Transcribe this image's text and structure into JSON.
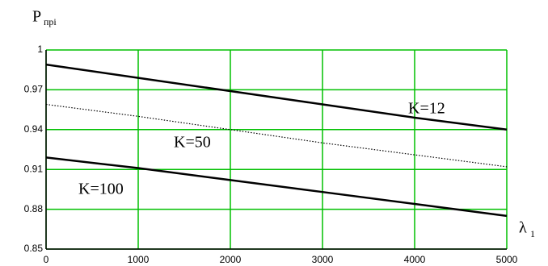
{
  "chart_data": {
    "type": "line",
    "ylabel": "P",
    "ylabel_sub": "прі",
    "xlabel": "λ",
    "xlabel_sub": "1",
    "x": [
      0,
      1000,
      2000,
      3000,
      4000,
      5000
    ],
    "series": [
      {
        "name": "K=12",
        "color": "#000000",
        "style": "solid",
        "values": [
          0.989,
          0.979,
          0.969,
          0.959,
          0.949,
          0.94
        ]
      },
      {
        "name": "K=50",
        "color": "#000000",
        "style": "dotted",
        "values": [
          0.959,
          0.95,
          0.94,
          0.93,
          0.921,
          0.912
        ]
      },
      {
        "name": "K=100",
        "color": "#000000",
        "style": "solid",
        "values": [
          0.919,
          0.911,
          0.902,
          0.893,
          0.884,
          0.875
        ]
      }
    ],
    "xlim": [
      0,
      5000
    ],
    "xticks": [
      0,
      1000,
      2000,
      3000,
      4000,
      5000
    ],
    "ylim": [
      0.85,
      1
    ],
    "yticks": [
      0.85,
      0.88,
      0.91,
      0.94,
      0.97,
      1
    ],
    "grid": true,
    "grid_color": "#00c000"
  }
}
